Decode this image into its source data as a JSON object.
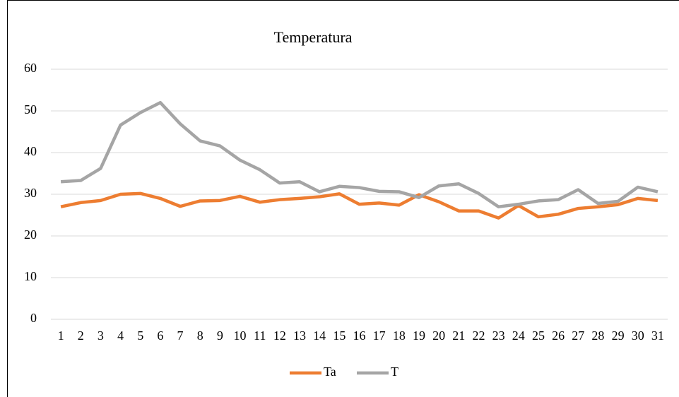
{
  "chart_data": {
    "type": "line",
    "title": "Temperatura",
    "categories": [
      "1",
      "2",
      "3",
      "4",
      "5",
      "6",
      "7",
      "8",
      "9",
      "10",
      "11",
      "12",
      "13",
      "14",
      "15",
      "16",
      "17",
      "18",
      "19",
      "20",
      "21",
      "22",
      "23",
      "24",
      "25",
      "26",
      "27",
      "28",
      "29",
      "30",
      "31"
    ],
    "series": [
      {
        "name": "Ta",
        "color": "#ed7d31",
        "values": [
          27,
          28,
          28.5,
          30,
          30.2,
          29,
          27.1,
          28.4,
          28.5,
          29.5,
          28.1,
          28.7,
          29,
          29.4,
          30.1,
          27.6,
          27.9,
          27.4,
          29.9,
          28.2,
          26,
          26,
          24.3,
          27.3,
          24.6,
          25.2,
          26.6,
          27,
          27.5,
          29,
          28.5
        ]
      },
      {
        "name": "T",
        "color": "#a5a5a5",
        "values": [
          33,
          33.3,
          36.2,
          46.6,
          49.6,
          52,
          46.9,
          42.8,
          41.6,
          38.2,
          35.9,
          32.7,
          33,
          30.6,
          31.9,
          31.6,
          30.7,
          30.6,
          29.2,
          32,
          32.5,
          30.2,
          27,
          27.6,
          28.4,
          28.7,
          31.1,
          27.8,
          28.3,
          31.7,
          30.6
        ]
      }
    ],
    "ylim": [
      0,
      60
    ],
    "yticks": [
      0,
      10,
      20,
      30,
      40,
      50,
      60
    ],
    "grid": true,
    "legend": "bottom"
  }
}
